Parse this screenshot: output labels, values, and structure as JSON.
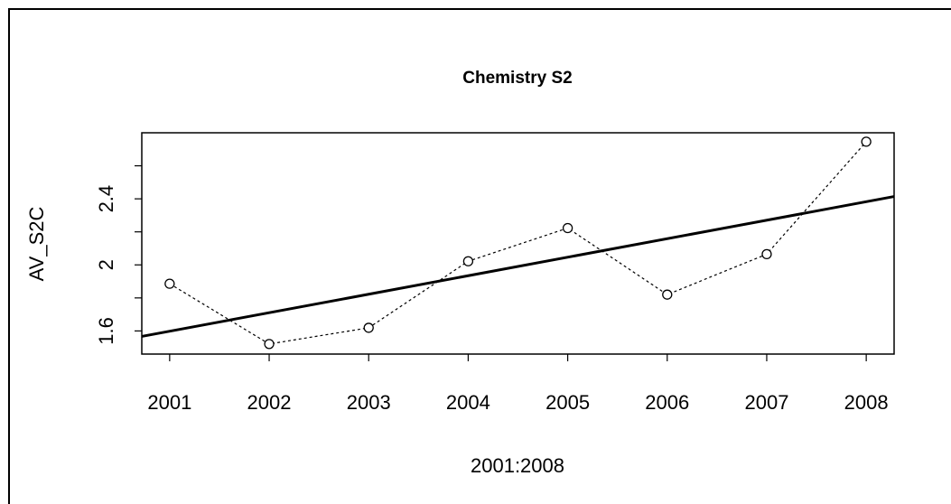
{
  "chart_data": {
    "type": "line",
    "title": "Chemistry S2",
    "x_label": "2001:2008",
    "y_label": "AV_S2C",
    "x": [
      2001,
      2002,
      2003,
      2004,
      2005,
      2006,
      2007,
      2008
    ],
    "series": [
      {
        "color": "#000000",
        "values": [
          1.886,
          1.521,
          1.619,
          2.022,
          2.223,
          1.82,
          2.065,
          2.746
        ]
      }
    ],
    "trend": {
      "x": [
        2000.72,
        2008.28
      ],
      "y": [
        1.567,
        2.414
      ],
      "color": "#000000"
    },
    "xlim": [
      2000.72,
      2008.28
    ],
    "xticks": [
      2001,
      2002,
      2003,
      2004,
      2005,
      2006,
      2007,
      2008
    ],
    "ylim": [
      1.46,
      2.8
    ],
    "yticks": [
      1.6,
      2.0,
      2.4
    ],
    "yminorticks": [
      1.8,
      2.2,
      2.6
    ],
    "grid": false
  }
}
